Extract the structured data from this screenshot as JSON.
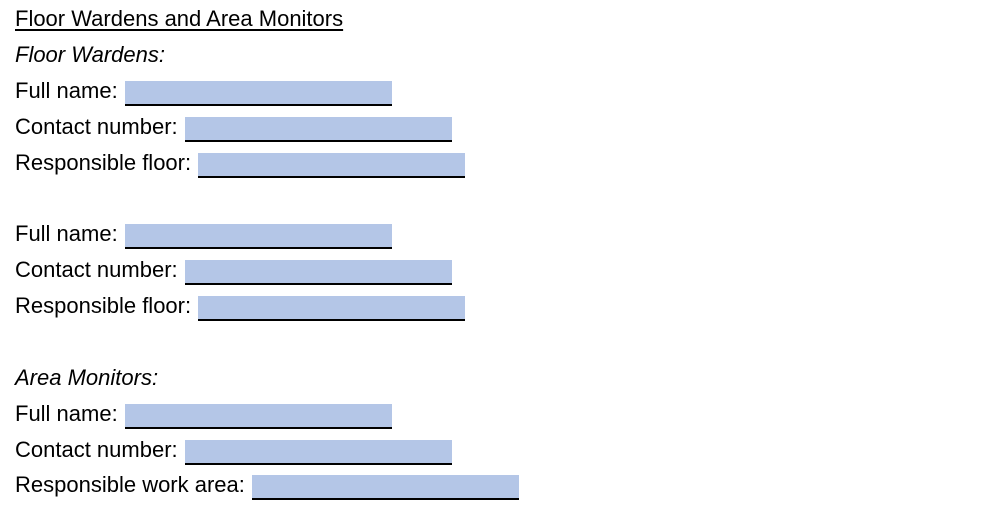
{
  "colors": {
    "field_fill": "#b4c6e7",
    "field_underline": "#000000",
    "text": "#000000"
  },
  "title": "Floor Wardens and Area Monitors",
  "floor_wardens": {
    "heading": "Floor Wardens:",
    "entries": [
      {
        "full_name_label": "Full name:",
        "full_name_value": "",
        "contact_label": "Contact number:",
        "contact_value": "",
        "floor_label": "Responsible floor:",
        "floor_value": ""
      },
      {
        "full_name_label": "Full name:",
        "full_name_value": "",
        "contact_label": "Contact number:",
        "contact_value": "",
        "floor_label": "Responsible floor:",
        "floor_value": ""
      }
    ]
  },
  "area_monitors": {
    "heading": "Area Monitors:",
    "entries": [
      {
        "full_name_label": "Full name:",
        "full_name_value": "",
        "contact_label": "Contact number:",
        "contact_value": "",
        "area_label": "Responsible work area:",
        "area_value": ""
      }
    ]
  }
}
